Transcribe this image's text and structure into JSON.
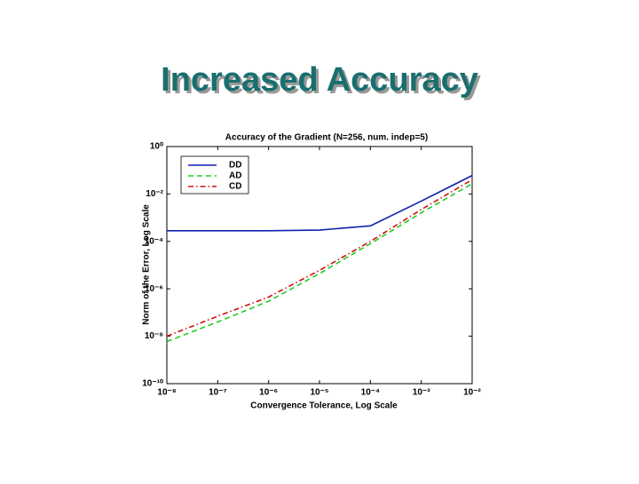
{
  "slide_title": "Increased Accuracy",
  "chart_data": {
    "type": "line",
    "title": "Accuracy of the Gradient (N=256, num. indep=5)",
    "x_label": "Convergence Tolerance, Log Scale",
    "y_label": "Norm of the Error, Log Scale",
    "x": [
      1e-08,
      1e-07,
      1e-06,
      1e-05,
      0.0001,
      0.001,
      0.01
    ],
    "series": [
      {
        "name": "DD",
        "color": "#1020b0",
        "style": "solid",
        "values": [
          0.00028,
          0.00028,
          0.00028,
          0.0003,
          0.00045,
          0.005,
          0.06
        ]
      },
      {
        "name": "AD",
        "color": "#22cc22",
        "style": "dashed",
        "values": [
          6e-09,
          4e-08,
          3e-07,
          4.4e-06,
          8e-05,
          0.0016,
          0.027
        ]
      },
      {
        "name": "CD",
        "color": "#cc1010",
        "style": "dashdot",
        "values": [
          1e-08,
          7e-08,
          4.5e-07,
          6e-06,
          0.0001,
          0.0022,
          0.04
        ]
      }
    ],
    "xscale": "log",
    "yscale": "log",
    "xlim": [
      1e-08,
      0.01
    ],
    "ylim": [
      1e-10,
      1
    ],
    "xticks": [
      {
        "value": 1e-08,
        "label": "10⁻⁸"
      },
      {
        "value": 1e-07,
        "label": "10⁻⁷"
      },
      {
        "value": 1e-06,
        "label": "10⁻⁶"
      },
      {
        "value": 1e-05,
        "label": "10⁻⁵"
      },
      {
        "value": 0.0001,
        "label": "10⁻⁴"
      },
      {
        "value": 0.001,
        "label": "10⁻³"
      },
      {
        "value": 0.01,
        "label": "10⁻²"
      }
    ],
    "yticks": [
      {
        "value": 1e-10,
        "label": "10⁻¹⁰"
      },
      {
        "value": 1e-08,
        "label": "10⁻⁸"
      },
      {
        "value": 1e-06,
        "label": "10⁻⁶"
      },
      {
        "value": 0.0001,
        "label": "10⁻⁴"
      },
      {
        "value": 0.01,
        "label": "10⁻²"
      },
      {
        "value": 1,
        "label": "10⁰"
      }
    ],
    "legend": "upper left"
  }
}
